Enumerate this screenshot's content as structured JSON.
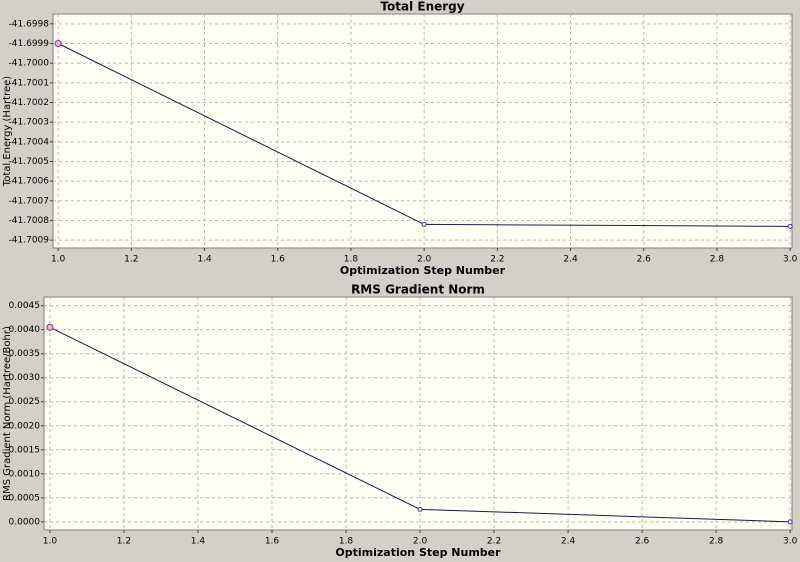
{
  "chart_data": [
    {
      "type": "line",
      "title": "Total Energy",
      "x_label": "Optimization Step Number",
      "y_label": "Total Energy (Hartree)",
      "x": [
        1,
        2,
        3
      ],
      "values": [
        -41.6999,
        -41.70082,
        -41.70083
      ],
      "color": "#1a1a4a",
      "marker_color": "#3030c0",
      "grid": true,
      "xlim": [
        0.986,
        3.005
      ],
      "ylim": [
        -41.70094,
        -41.69975
      ],
      "xticks": [
        {
          "value": 1,
          "label": "1.0"
        },
        {
          "value": 1.2,
          "label": "1.2"
        },
        {
          "value": 1.4,
          "label": "1.4"
        },
        {
          "value": 1.6,
          "label": "1.6"
        },
        {
          "value": 1.8,
          "label": "1.8"
        },
        {
          "value": 2,
          "label": "2.0"
        },
        {
          "value": 2.2,
          "label": "2.2"
        },
        {
          "value": 2.4,
          "label": "2.4"
        },
        {
          "value": 2.6,
          "label": "2.6"
        },
        {
          "value": 2.8,
          "label": "2.8"
        },
        {
          "value": 3,
          "label": "3.0"
        }
      ],
      "yticks": [
        -41.6998,
        -41.6999,
        {
          "value": -41.7,
          "label": "-41.7000"
        },
        -41.7001,
        -41.7002,
        -41.7003,
        -41.7004,
        -41.7005,
        -41.7006,
        -41.7007,
        -41.7008,
        -41.7009
      ]
    },
    {
      "type": "line",
      "title": "RMS Gradient Norm",
      "x_label": "Optimization Step Number",
      "y_label": "RMS Gradient Norm (Hartree/Bohr)",
      "x": [
        1,
        2,
        3
      ],
      "values": [
        0.00405,
        0.00026,
        0.0
      ],
      "color": "#1a1a4a",
      "marker_color": "#3030c0",
      "grid": true,
      "xlim": [
        0.984,
        3.005
      ],
      "ylim": [
        -0.00017,
        0.00468
      ],
      "xticks": [
        {
          "value": 1,
          "label": "1.0"
        },
        {
          "value": 1.2,
          "label": "1.2"
        },
        {
          "value": 1.4,
          "label": "1.4"
        },
        {
          "value": 1.6,
          "label": "1.6"
        },
        {
          "value": 1.8,
          "label": "1.8"
        },
        {
          "value": 2,
          "label": "2.0"
        },
        {
          "value": 2.2,
          "label": "2.2"
        },
        {
          "value": 2.4,
          "label": "2.4"
        },
        {
          "value": 2.6,
          "label": "2.6"
        },
        {
          "value": 2.8,
          "label": "2.8"
        },
        {
          "value": 3,
          "label": "3.0"
        }
      ],
      "yticks": [
        {
          "value": 0,
          "label": "0.0000"
        },
        0.0005,
        {
          "value": 0.001,
          "label": "0.0010"
        },
        0.0015,
        {
          "value": 0.002,
          "label": "0.0020"
        },
        0.0025,
        {
          "value": 0.003,
          "label": "0.0030"
        },
        0.0035,
        {
          "value": 0.004,
          "label": "0.0040"
        },
        0.0045
      ]
    }
  ]
}
